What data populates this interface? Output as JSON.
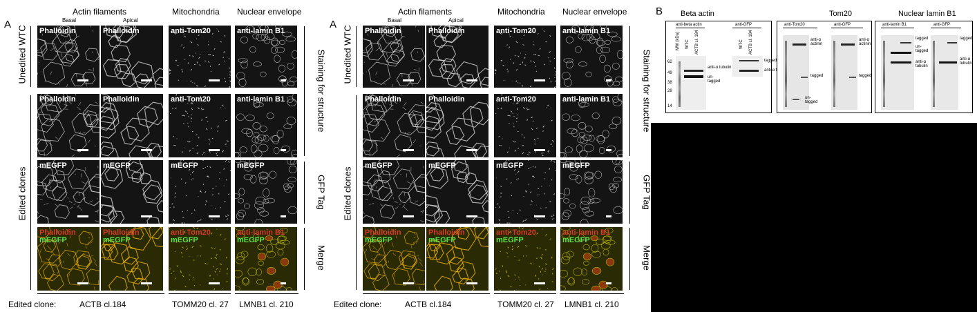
{
  "panelA": {
    "letter": "A",
    "col_headers": [
      "Actin filaments",
      "Mitochondria",
      "Nuclear envelope"
    ],
    "sub_headers": [
      "Basal",
      "Apical"
    ],
    "row_left_labels": [
      "Unedited WTC",
      "Edited clones"
    ],
    "row_right_labels": [
      "Staining for structure",
      "GFP Tag",
      "Merge"
    ],
    "row1": [
      "Phalloidin",
      "Phalloidin",
      "anti-Tom20",
      "anti-lamin B1"
    ],
    "row2": [
      "Phalloidin",
      "Phalloidin",
      "anti-Tom20",
      "anti-lamin B1"
    ],
    "row3": [
      "mEGFP",
      "mEGFP",
      "mEGFP",
      "mEGFP"
    ],
    "row4_red": [
      "Phalloidin",
      "Phalloidin",
      "anti-Tom20",
      "anti-lamin B1"
    ],
    "row4_green": [
      "mEGFP",
      "mEGFP",
      "mEGFP",
      "mEGFP"
    ],
    "footer_label": "Edited clone:",
    "footer_clones": [
      "ACTB cl.184",
      "TOMM20 cl. 27",
      "LMNB1 cl. 210"
    ]
  },
  "panelB": {
    "letter": "B",
    "titles": [
      "Beta actin",
      "Tom20",
      "Nuclear lamin B1"
    ],
    "blot1": {
      "left_header": "anti-beta actin",
      "right_header": "anti-GFP",
      "lanes_left": [
        "MW (kDa)",
        "WTC",
        "ACTB cl. 184"
      ],
      "lanes_right": [
        "WTC",
        "ACTB cl. 184"
      ],
      "mw": [
        "62",
        "49",
        "38",
        "28",
        "14"
      ],
      "mid_labels": [
        "anti-α tubulin",
        "un-\ntagged"
      ],
      "right_labels": [
        "tagged",
        "anti-α tubulin"
      ]
    },
    "blot2": {
      "left_header": "anti-Tom20",
      "right_header": "anti-GFP",
      "lanes_left": [
        "MW (kDa)",
        "WTC",
        "TOMM20 cl. 27"
      ],
      "lanes_right": [
        "MW (kDa)",
        "WTC",
        "TOMM20 cl. 27"
      ],
      "mw": [
        "62",
        "49",
        "38",
        "28",
        "14"
      ],
      "labels_left": [
        "anti-α actinin",
        "tagged",
        "un-\ntagged"
      ],
      "labels_right": [
        "anti-α actinin",
        "tagged"
      ]
    },
    "blot3": {
      "left_header": "anti-lamin B1",
      "right_header": "anti-GFP",
      "lanes_left": [
        "MW (kDa)",
        "WTC",
        "LMNB1 - cl. 210"
      ],
      "lanes_right": [
        "MW (kDa)",
        "WTC",
        "LMNB1 - cl. 210"
      ],
      "mw": [
        "62",
        "49",
        "38",
        "28",
        "14"
      ],
      "labels_left": [
        "tagged",
        "un-\ntagged",
        "anti-α tubulin"
      ],
      "labels_right": [
        "tagged",
        "anti-α tubulin"
      ]
    }
  }
}
